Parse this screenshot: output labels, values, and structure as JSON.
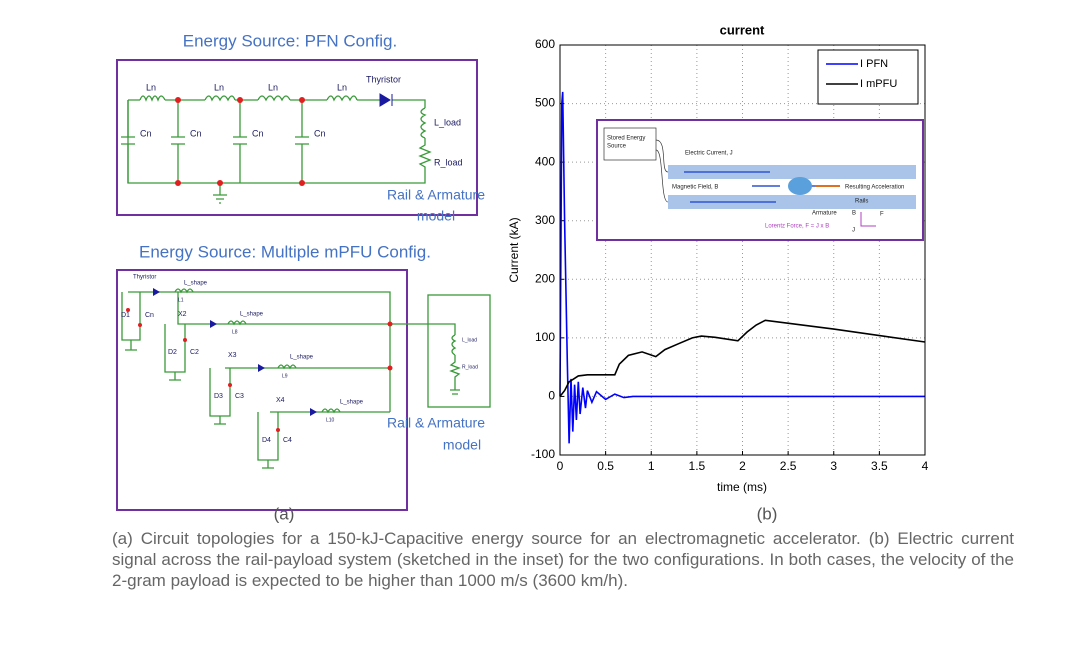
{
  "panel_a": {
    "label": "(a)",
    "pfn": {
      "title": "Energy Source: PFN Config.",
      "inductors": [
        "Ln",
        "Ln",
        "Ln",
        "Ln"
      ],
      "capacitors": [
        "Cn",
        "Cn",
        "Cn",
        "Cn"
      ],
      "switch": "Thyristor",
      "load_l": "L_load",
      "load_r": "R_load",
      "load_title": [
        "Rail & Armature",
        "model"
      ]
    },
    "mpfu": {
      "title": "Energy Source: Multiple mPFU Config.",
      "switch": "Thyristor",
      "shape": [
        "L_shape",
        "L_shape",
        "L_shape",
        "L_shape"
      ],
      "inductor_ids": [
        "L1",
        "L8",
        "L9",
        "L10"
      ],
      "diodes": [
        "D1",
        "D2",
        "D3",
        "D4"
      ],
      "caps": [
        "Cn",
        "C2",
        "C3",
        "C4"
      ],
      "units": [
        "X2",
        "X3",
        "X4"
      ],
      "load_l": "L_load",
      "load_r": "R_load",
      "load_title": [
        "Rail & Armature",
        "model"
      ]
    }
  },
  "panel_b": {
    "label": "(b)",
    "inset": {
      "source": [
        "Stored Energy",
        "Source"
      ],
      "current": "Electric Current, J",
      "field": "Magnetic Field, B",
      "accel": "Resulting Acceleration",
      "rails": "Rails",
      "armature": "Armature",
      "force": "Lorentz Force, F = J x B",
      "axis_b": "B",
      "axis_f": "F",
      "axis_j": "J"
    }
  },
  "chart_data": {
    "type": "line",
    "title": "current",
    "xlabel": "time (ms)",
    "ylabel": "Current (kA)",
    "xlim": [
      0,
      4
    ],
    "ylim": [
      -100,
      600
    ],
    "xticks": [
      0,
      0.5,
      1,
      1.5,
      2,
      2.5,
      3,
      3.5,
      4
    ],
    "yticks": [
      -100,
      0,
      100,
      200,
      300,
      400,
      500,
      600
    ],
    "grid": true,
    "legend": "upper right",
    "series": [
      {
        "name": "I PFN",
        "color": "#0000ff",
        "x": [
          0,
          0.02,
          0.03,
          0.05,
          0.08,
          0.1,
          0.12,
          0.14,
          0.16,
          0.18,
          0.2,
          0.22,
          0.25,
          0.28,
          0.3,
          0.35,
          0.4,
          0.5,
          0.6,
          0.7,
          0.8,
          4
        ],
        "values": [
          0,
          500,
          520,
          300,
          60,
          -80,
          30,
          -60,
          20,
          -40,
          25,
          -30,
          15,
          -20,
          10,
          -10,
          8,
          -5,
          4,
          -2,
          0,
          0
        ]
      },
      {
        "name": "I mPFU",
        "color": "#000000",
        "x": [
          0,
          0.05,
          0.1,
          0.15,
          0.2,
          0.3,
          0.6,
          0.65,
          0.75,
          0.9,
          1.05,
          1.15,
          1.3,
          1.45,
          1.55,
          1.7,
          1.95,
          2.05,
          2.15,
          2.25,
          3,
          4
        ],
        "values": [
          0,
          10,
          25,
          30,
          35,
          37,
          37,
          55,
          70,
          76,
          68,
          80,
          90,
          100,
          103,
          101,
          95,
          110,
          122,
          130,
          115,
          93
        ]
      }
    ]
  },
  "caption": "(a) Circuit topologies for a 150-kJ-Capacitive energy source for an electromagnetic accelerator. (b) Electric current signal across the rail-payload system (sketched in the inset) for the two configurations. In both cases, the velocity of the 2-gram payload is expected to be higher than 1000 m/s (3600 km/h)."
}
